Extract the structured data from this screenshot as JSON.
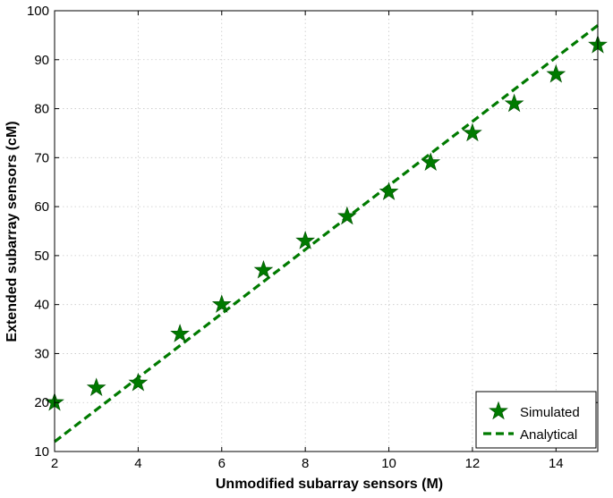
{
  "chart_data": {
    "type": "scatter",
    "title": "",
    "xlabel": "Unmodified subarray sensors (M)",
    "ylabel": "Extended subarray sensors (cM)",
    "xlim": [
      2,
      15
    ],
    "ylim": [
      10,
      100
    ],
    "xticks": [
      2,
      4,
      6,
      8,
      10,
      12,
      14
    ],
    "yticks": [
      10,
      20,
      30,
      40,
      50,
      60,
      70,
      80,
      90,
      100
    ],
    "grid": true,
    "legend_position": "bottom-right",
    "series": [
      {
        "name": "Simulated",
        "kind": "scatter",
        "marker": "star",
        "color": "#007a00",
        "x": [
          2,
          3,
          4,
          5,
          6,
          7,
          8,
          9,
          10,
          11,
          12,
          13,
          14,
          15
        ],
        "y": [
          20,
          23,
          24,
          34,
          40,
          47,
          53,
          58,
          63,
          69,
          75,
          81,
          87,
          93
        ]
      },
      {
        "name": "Analytical",
        "kind": "line",
        "style": "dashed",
        "color": "#007a00",
        "x": [
          2,
          15
        ],
        "y": [
          12,
          97
        ]
      }
    ]
  }
}
